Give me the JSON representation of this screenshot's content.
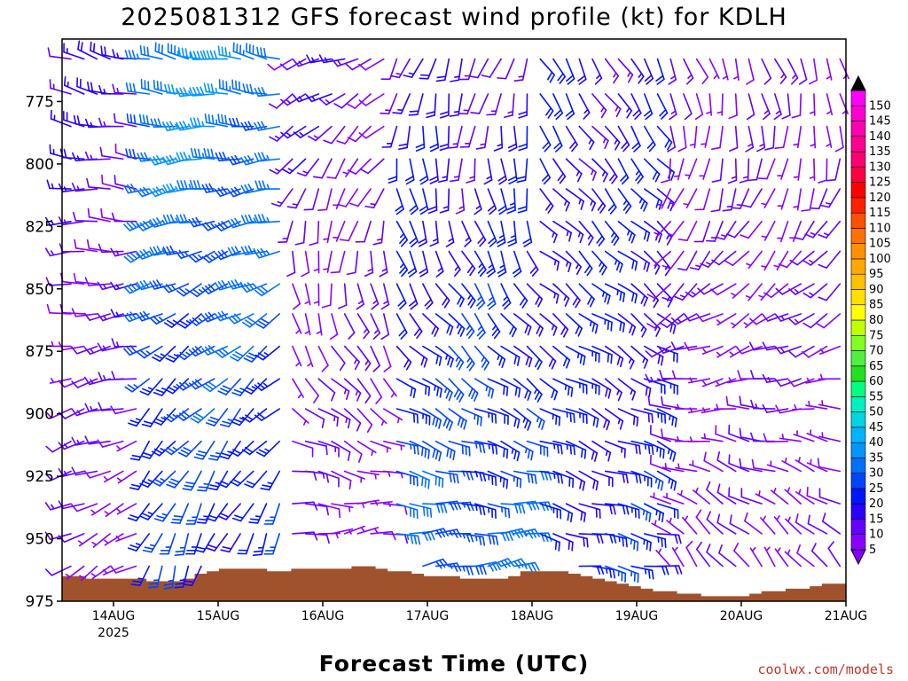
{
  "chart_data": {
    "type": "wind-barb-profile",
    "title": "2025081312 GFS forecast wind profile (kt) for KDLH",
    "xlabel": "Forecast Time (UTC)",
    "ylabel": "",
    "y_ticks": [
      "775",
      "800",
      "825",
      "850",
      "875",
      "900",
      "925",
      "950",
      "975"
    ],
    "ylim": [
      975,
      750
    ],
    "x_ticks": [
      {
        "label": "14AUG",
        "sub": "2025"
      },
      {
        "label": "15AUG",
        "sub": ""
      },
      {
        "label": "16AUG",
        "sub": ""
      },
      {
        "label": "17AUG",
        "sub": ""
      },
      {
        "label": "18AUG",
        "sub": ""
      },
      {
        "label": "19AUG",
        "sub": ""
      },
      {
        "label": "20AUG",
        "sub": ""
      },
      {
        "label": "21AUG",
        "sub": ""
      }
    ],
    "grid": false,
    "surface_fill_color": "#a0522d",
    "colorbar": {
      "position": "right",
      "levels": [
        5,
        10,
        15,
        20,
        25,
        30,
        35,
        40,
        45,
        50,
        55,
        60,
        65,
        70,
        75,
        80,
        85,
        90,
        95,
        100,
        105,
        110,
        115,
        120,
        125,
        130,
        135,
        140,
        145,
        150
      ],
      "colors": [
        "#8a00ff",
        "#6400ff",
        "#2a00ff",
        "#0015ff",
        "#0045ff",
        "#0070ff",
        "#0095ff",
        "#00b5ff",
        "#00d5e0",
        "#00f0c0",
        "#00ff80",
        "#20e020",
        "#50f040",
        "#80ff20",
        "#c0ff00",
        "#ffff00",
        "#ffe000",
        "#ffc000",
        "#ffa800",
        "#ff9000",
        "#ff7000",
        "#ff5000",
        "#ff2000",
        "#ff0000",
        "#ff0040",
        "#ff0070",
        "#ff0090",
        "#ff00b0",
        "#ff00d0",
        "#ff00ff"
      ]
    },
    "surface_profile_hpa": [
      965,
      965,
      966,
      966,
      966,
      966,
      966,
      967,
      967,
      967,
      966,
      964,
      963,
      962,
      962,
      962,
      962,
      963,
      963,
      962,
      962,
      962,
      962,
      962,
      961,
      961,
      962,
      963,
      963,
      964,
      965,
      965,
      965,
      966,
      966,
      966,
      966,
      965,
      963,
      963,
      963,
      963,
      964,
      965,
      966,
      967,
      968,
      969,
      970,
      971,
      971,
      972,
      972,
      973,
      973,
      973,
      973,
      972,
      971,
      971,
      970,
      970,
      969,
      968,
      968
    ],
    "barb_rows_hpa": [
      758,
      772,
      785,
      798,
      810,
      823,
      835,
      848,
      860,
      873,
      886,
      898,
      911,
      923,
      936,
      948,
      961
    ],
    "wind_regimes": [
      {
        "from_day": 0.0,
        "to_day": 0.8,
        "low_dir": 240,
        "low_spd": 8,
        "high_dir": 285,
        "high_spd": 15
      },
      {
        "from_day": 0.8,
        "to_day": 2.1,
        "low_dir": 200,
        "low_spd": 22,
        "high_dir": 280,
        "high_spd": 35
      },
      {
        "from_day": 2.1,
        "to_day": 3.2,
        "low_dir": 70,
        "low_spd": 8,
        "high_dir": 250,
        "high_spd": 12
      },
      {
        "from_day": 3.2,
        "to_day": 4.5,
        "low_dir": 80,
        "low_spd": 30,
        "high_dir": 200,
        "high_spd": 15
      },
      {
        "from_day": 4.5,
        "to_day": 5.8,
        "low_dir": 100,
        "low_spd": 22,
        "high_dir": 150,
        "high_spd": 18
      },
      {
        "from_day": 5.8,
        "to_day": 7.0,
        "low_dir": 320,
        "low_spd": 8,
        "high_dir": 160,
        "high_spd": 10
      }
    ],
    "credit": "coolwx.com/models"
  }
}
